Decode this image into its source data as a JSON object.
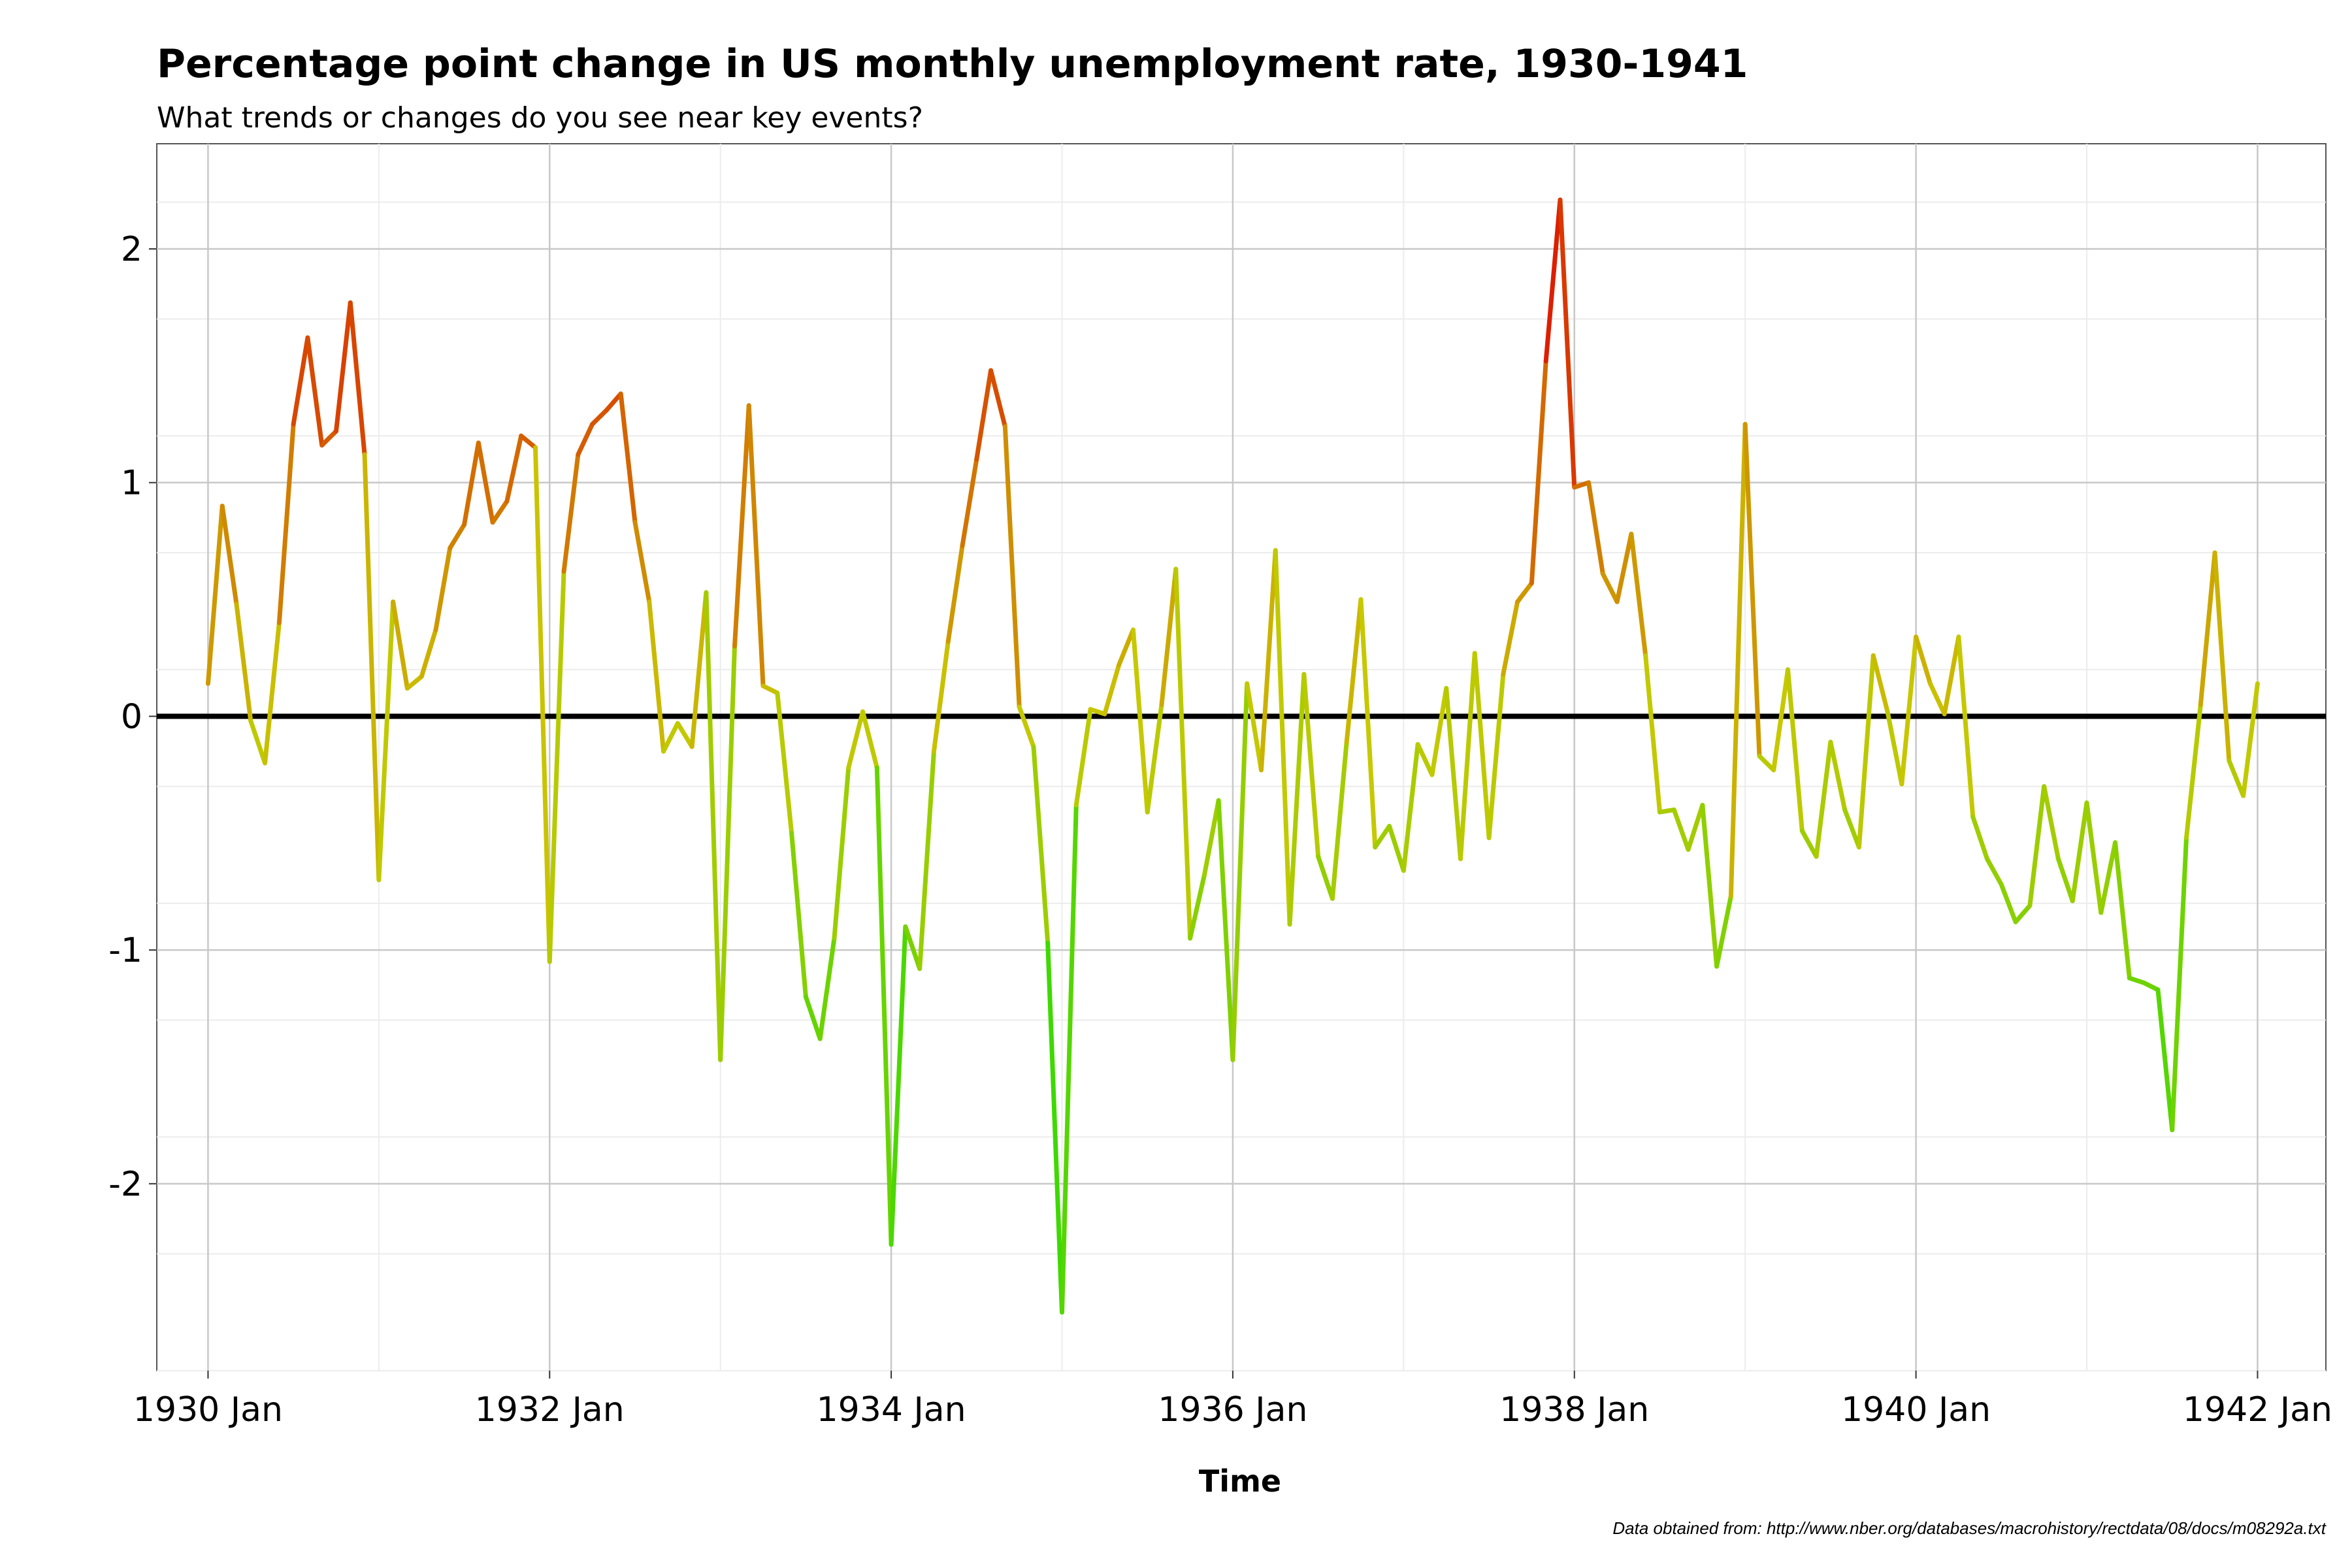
{
  "chart_data": {
    "type": "line",
    "title": "Percentage point change in US monthly unemployment rate, 1930-1941",
    "subtitle": "What trends or changes do you see near key events?",
    "xlabel": "Time",
    "ylabel": "",
    "caption": "Data obtained from: http://www.nber.org/databases/macrohistory/rectdata/08/docs/m08292a.txt",
    "x_start": "1930 Jan",
    "x_step": "1 month",
    "xlim": [
      -3.6,
      148.8
    ],
    "ylim": [
      -2.8,
      2.45
    ],
    "x_ticks": [
      {
        "label": "1930 Jan",
        "month_index": 0
      },
      {
        "label": "1932 Jan",
        "month_index": 24
      },
      {
        "label": "1934 Jan",
        "month_index": 48
      },
      {
        "label": "1936 Jan",
        "month_index": 72
      },
      {
        "label": "1938 Jan",
        "month_index": 96
      },
      {
        "label": "1940 Jan",
        "month_index": 120
      },
      {
        "label": "1942 Jan",
        "month_index": 144
      }
    ],
    "y_ticks": [
      {
        "label": "2",
        "value": 2
      },
      {
        "label": "1",
        "value": 1
      },
      {
        "label": "0",
        "value": 0
      },
      {
        "label": "-1",
        "value": -1
      },
      {
        "label": "-2",
        "value": -2
      }
    ],
    "grid": true,
    "reference_line": 0,
    "color_scale": {
      "low": "#00e000",
      "mid": "#c8c800",
      "high": "#e00000"
    },
    "values": [
      0.14,
      0.9,
      0.48,
      -0.02,
      -0.2,
      0.4,
      1.25,
      1.62,
      1.16,
      1.22,
      1.77,
      1.12,
      -0.7,
      0.49,
      0.12,
      0.17,
      0.37,
      0.72,
      0.82,
      1.17,
      0.83,
      0.92,
      1.2,
      1.15,
      -1.05,
      0.62,
      1.12,
      1.25,
      1.31,
      1.38,
      0.83,
      0.49,
      -0.15,
      -0.03,
      -0.13,
      0.53,
      -1.47,
      0.3,
      1.33,
      0.13,
      0.1,
      -0.5,
      -1.2,
      -1.38,
      -0.95,
      -0.22,
      0.02,
      -0.22,
      -2.26,
      -0.9,
      -1.08,
      -0.15,
      0.32,
      0.73,
      1.1,
      1.48,
      1.24,
      0.04,
      -0.13,
      -0.97,
      -2.55,
      -0.38,
      0.03,
      0.01,
      0.22,
      0.37,
      -0.41,
      0.05,
      0.63,
      -0.95,
      -0.68,
      -0.36,
      -1.47,
      0.14,
      -0.23,
      0.71,
      -0.89,
      0.18,
      -0.6,
      -0.78,
      -0.11,
      0.5,
      -0.56,
      -0.47,
      -0.66,
      -0.12,
      -0.25,
      0.12,
      -0.61,
      0.27,
      -0.52,
      0.18,
      0.49,
      0.57,
      1.52,
      2.21,
      0.98,
      1.0,
      0.61,
      0.49,
      0.78,
      0.26,
      -0.41,
      -0.4,
      -0.57,
      -0.38,
      -1.07,
      -0.77,
      1.25,
      -0.17,
      -0.23,
      0.2,
      -0.49,
      -0.6,
      -0.11,
      -0.4,
      -0.56,
      0.26,
      0.02,
      -0.29,
      0.34,
      0.14,
      0.01,
      0.34,
      -0.43,
      -0.61,
      -0.72,
      -0.88,
      -0.81,
      -0.3,
      -0.61,
      -0.79,
      -0.37,
      -0.84,
      -0.54,
      -1.12,
      -1.14,
      -1.17,
      -1.77,
      -0.52,
      0.05,
      0.7,
      -0.19,
      -0.34,
      0.14
    ]
  }
}
